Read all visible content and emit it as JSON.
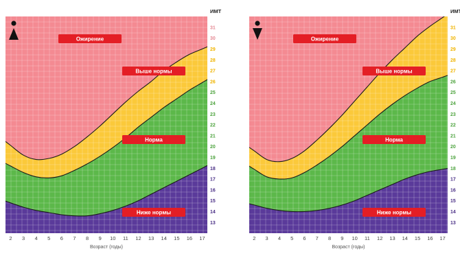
{
  "chart_data": [
    {
      "type": "area",
      "panel": "boys",
      "gender_icon": "boy-icon",
      "x": [
        2,
        3,
        4,
        5,
        6,
        7,
        8,
        9,
        10,
        11,
        12,
        13,
        14,
        15,
        16,
        17
      ],
      "xlabel": "Возраст (годы)",
      "right_axis_title": "ИМТ",
      "ylim": [
        12,
        32
      ],
      "y_ticks": [
        13,
        14,
        15,
        16,
        17,
        18,
        19,
        20,
        21,
        22,
        23,
        24,
        25,
        26,
        27,
        28,
        29,
        30,
        31
      ],
      "colors": {
        "obesity": "#f48a92",
        "overweight": "#fbc93a",
        "normal": "#5cb84a",
        "underweight": "#5a3a9a",
        "label_bg": "#e41e25",
        "label_text": "#ffffff"
      },
      "zones": [
        {
          "label": "Ожирение",
          "color": "obesity"
        },
        {
          "label": "Выше нормы",
          "color": "overweight"
        },
        {
          "label": "Норма",
          "color": "normal"
        },
        {
          "label": "Ниже нормы",
          "color": "underweight"
        }
      ],
      "series": [
        {
          "boundary": "overweight-obesity",
          "values": [
            20.1,
            19.2,
            18.8,
            18.9,
            19.3,
            20.0,
            20.9,
            21.9,
            23.0,
            24.1,
            25.1,
            26.0,
            27.0,
            27.8,
            28.5,
            29.0
          ]
        },
        {
          "boundary": "normal-overweight",
          "values": [
            18.2,
            17.6,
            17.2,
            17.1,
            17.3,
            17.8,
            18.4,
            19.1,
            19.9,
            20.8,
            21.8,
            22.7,
            23.6,
            24.4,
            25.2,
            25.9
          ]
        },
        {
          "boundary": "underweight-normal",
          "values": [
            14.8,
            14.4,
            14.1,
            13.9,
            13.7,
            13.6,
            13.6,
            13.8,
            14.1,
            14.5,
            15.0,
            15.6,
            16.2,
            16.8,
            17.4,
            18.0
          ]
        }
      ]
    },
    {
      "type": "area",
      "panel": "girls",
      "gender_icon": "girl-icon",
      "x": [
        2,
        3,
        4,
        5,
        6,
        7,
        8,
        9,
        10,
        11,
        12,
        13,
        14,
        15,
        16,
        17
      ],
      "xlabel": "Возраст (годы)",
      "right_axis_title": "ИМТ",
      "ylim": [
        12,
        32
      ],
      "y_ticks": [
        13,
        14,
        15,
        16,
        17,
        18,
        19,
        20,
        21,
        22,
        23,
        24,
        25,
        26,
        27,
        28,
        29,
        30,
        31
      ],
      "colors": {
        "obesity": "#f48a92",
        "overweight": "#fbc93a",
        "normal": "#5cb84a",
        "underweight": "#5a3a9a",
        "label_bg": "#e41e25",
        "label_text": "#ffffff"
      },
      "zones": [
        {
          "label": "Ожирение",
          "color": "obesity"
        },
        {
          "label": "Выше нормы",
          "color": "overweight"
        },
        {
          "label": "Норма",
          "color": "normal"
        },
        {
          "label": "Ниже нормы",
          "color": "underweight"
        }
      ],
      "series": [
        {
          "boundary": "overweight-obesity",
          "values": [
            19.6,
            18.8,
            18.6,
            18.9,
            19.6,
            20.6,
            21.7,
            22.9,
            24.2,
            25.5,
            26.8,
            28.0,
            29.1,
            30.2,
            31.1,
            31.9
          ]
        },
        {
          "boundary": "normal-overweight",
          "values": [
            17.9,
            17.2,
            17.0,
            17.1,
            17.6,
            18.3,
            19.1,
            20.0,
            21.0,
            22.0,
            23.0,
            23.9,
            24.7,
            25.4,
            26.0,
            26.4
          ]
        },
        {
          "boundary": "underweight-normal",
          "values": [
            14.6,
            14.3,
            14.1,
            14.0,
            14.0,
            14.1,
            14.3,
            14.6,
            15.0,
            15.5,
            16.0,
            16.5,
            17.0,
            17.4,
            17.7,
            17.9
          ]
        }
      ]
    }
  ]
}
